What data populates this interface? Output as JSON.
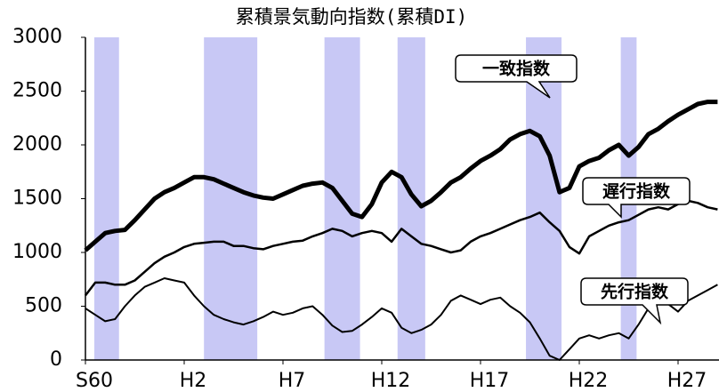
{
  "chart_data": {
    "type": "line",
    "title": "累積景気動向指数(累積DI)",
    "categories": [
      "S60",
      null,
      null,
      null,
      null,
      null,
      null,
      null,
      null,
      null,
      "H2",
      null,
      null,
      null,
      null,
      null,
      null,
      null,
      null,
      null,
      "H7",
      null,
      null,
      null,
      null,
      null,
      null,
      null,
      null,
      null,
      "H12",
      null,
      null,
      null,
      null,
      null,
      null,
      null,
      null,
      null,
      "H17",
      null,
      null,
      null,
      null,
      null,
      null,
      null,
      null,
      null,
      "H22",
      null,
      null,
      null,
      null,
      null,
      null,
      null,
      null,
      null,
      "H27",
      null,
      null,
      null,
      null
    ],
    "ylim": [
      0,
      3000
    ],
    "yticks": [
      0,
      500,
      1000,
      1500,
      2000,
      2500,
      3000
    ],
    "shaded_periods": [
      [
        0.9,
        3.4
      ],
      [
        12.0,
        17.4
      ],
      [
        24.2,
        27.8
      ],
      [
        31.6,
        34.4
      ],
      [
        44.6,
        48.2
      ],
      [
        54.2,
        55.8
      ]
    ],
    "shade_color": "#c8c8f5",
    "series": [
      {
        "name": "一致指数",
        "color": "#000000",
        "width": 5,
        "values": [
          1020,
          1100,
          1180,
          1200,
          1210,
          1300,
          1400,
          1500,
          1560,
          1600,
          1650,
          1700,
          1700,
          1680,
          1640,
          1600,
          1560,
          1530,
          1510,
          1500,
          1540,
          1580,
          1620,
          1640,
          1650,
          1600,
          1480,
          1360,
          1330,
          1450,
          1650,
          1750,
          1700,
          1540,
          1430,
          1480,
          1560,
          1650,
          1700,
          1780,
          1850,
          1900,
          1960,
          2050,
          2100,
          2130,
          2080,
          1900,
          1560,
          1600,
          1800,
          1850,
          1880,
          1950,
          2000,
          1900,
          1980,
          2100,
          2150,
          2220,
          2280,
          2330,
          2380,
          2400,
          2400
        ]
      },
      {
        "name": "遅行指数",
        "color": "#000000",
        "width": 2.5,
        "values": [
          600,
          720,
          720,
          700,
          700,
          740,
          820,
          900,
          960,
          1000,
          1050,
          1080,
          1090,
          1100,
          1100,
          1060,
          1060,
          1040,
          1030,
          1060,
          1080,
          1100,
          1110,
          1150,
          1180,
          1220,
          1200,
          1150,
          1180,
          1200,
          1180,
          1100,
          1220,
          1150,
          1080,
          1060,
          1030,
          1000,
          1020,
          1100,
          1150,
          1180,
          1220,
          1260,
          1300,
          1330,
          1370,
          1280,
          1200,
          1050,
          990,
          1150,
          1200,
          1250,
          1280,
          1300,
          1350,
          1400,
          1420,
          1400,
          1450,
          1480,
          1460,
          1420,
          1400
        ]
      },
      {
        "name": "先行指数",
        "color": "#000000",
        "width": 2,
        "values": [
          480,
          420,
          360,
          380,
          500,
          600,
          680,
          720,
          760,
          740,
          720,
          600,
          500,
          420,
          380,
          350,
          330,
          360,
          400,
          450,
          420,
          440,
          480,
          500,
          420,
          320,
          260,
          270,
          330,
          400,
          480,
          440,
          300,
          250,
          280,
          330,
          420,
          550,
          600,
          560,
          520,
          560,
          580,
          500,
          440,
          350,
          200,
          40,
          0,
          100,
          200,
          230,
          200,
          230,
          250,
          200,
          330,
          480,
          560,
          520,
          450,
          550,
          600,
          650,
          700
        ]
      }
    ]
  }
}
